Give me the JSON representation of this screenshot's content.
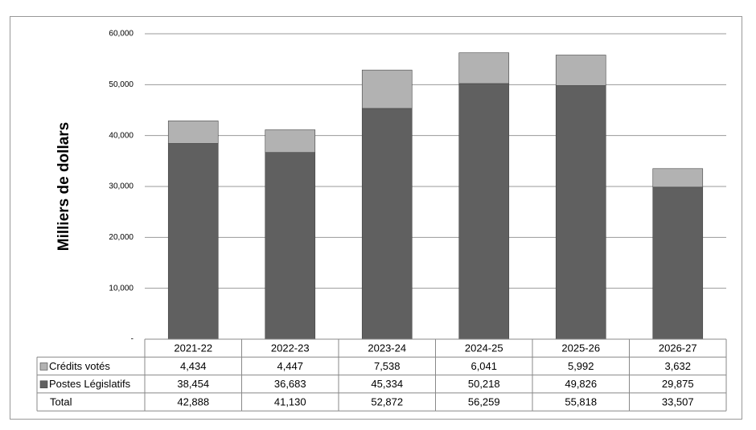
{
  "chart_data": {
    "type": "bar",
    "stacked": true,
    "y_label": "Milliers de dollars",
    "categories": [
      "2021-22",
      "2022-23",
      "2023-24",
      "2024-25",
      "2025-26",
      "2026-27"
    ],
    "series": [
      {
        "name": "Crédits votés",
        "color": "#b2b2b2",
        "values": [
          4434,
          4447,
          7538,
          6041,
          5992,
          3632
        ],
        "value_labels": [
          "4,434",
          "4,447",
          "7,538",
          "6,041",
          "5,992",
          "3,632"
        ]
      },
      {
        "name": "Postes Législatifs",
        "color": "#606060",
        "values": [
          38454,
          36683,
          45334,
          50218,
          49826,
          29875
        ],
        "value_labels": [
          "38,454",
          "36,683",
          "45,334",
          "50,218",
          "49,826",
          "29,875"
        ]
      }
    ],
    "total": {
      "name": "Total",
      "values": [
        42888,
        41130,
        52872,
        56259,
        55818,
        33507
      ],
      "value_labels": [
        "42,888",
        "41,130",
        "52,872",
        "56,259",
        "55,818",
        "33,507"
      ]
    },
    "ylim": [
      0,
      60000
    ],
    "yticks": [
      {
        "value": 0,
        "label": "-"
      },
      {
        "value": 10000,
        "label": "10,000"
      },
      {
        "value": 20000,
        "label": "20,000"
      },
      {
        "value": 30000,
        "label": "30,000"
      },
      {
        "value": 40000,
        "label": "40,000"
      },
      {
        "value": 50000,
        "label": "50,000"
      },
      {
        "value": 60000,
        "label": "60,000"
      }
    ],
    "grid": true
  }
}
